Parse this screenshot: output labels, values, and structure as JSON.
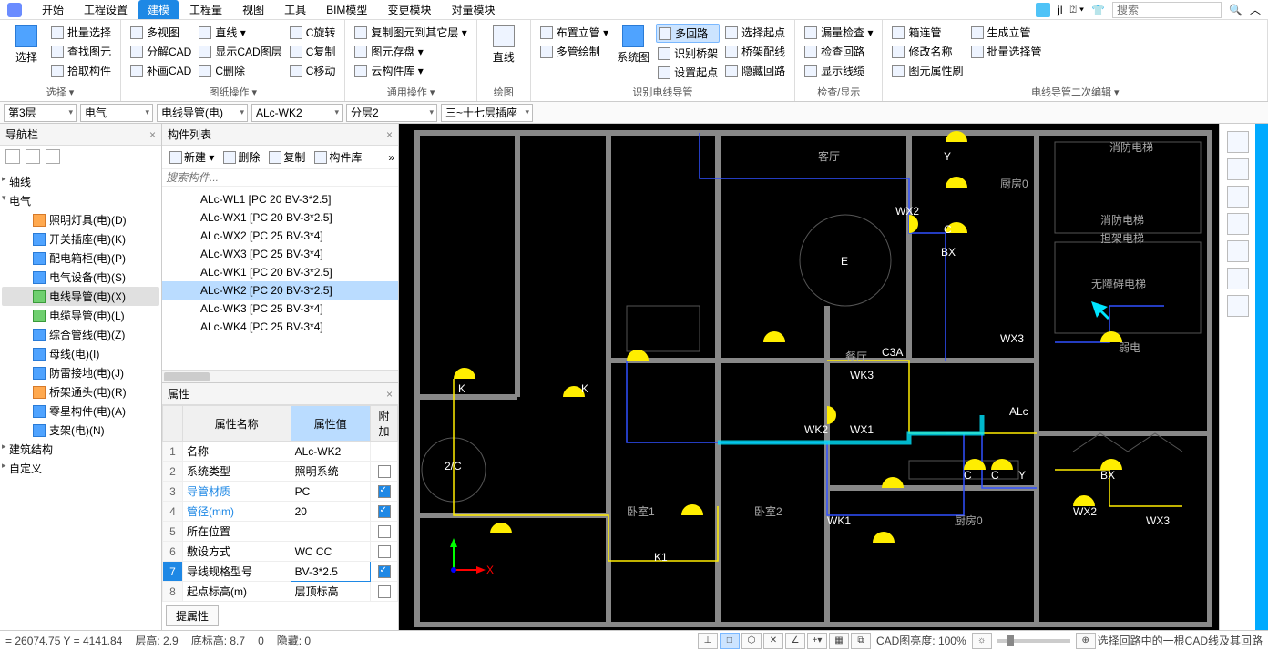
{
  "topMenu": {
    "tabs": [
      "开始",
      "工程设置",
      "建模",
      "工程量",
      "视图",
      "工具",
      "BIM模型",
      "变更模块",
      "对量模块"
    ],
    "active": 2,
    "user": "jl",
    "searchPlaceholder": "搜索"
  },
  "ribbon": {
    "select": {
      "big": "选择",
      "items": [
        "批量选择",
        "查找图元",
        "拾取构件"
      ],
      "label": "选择 ▾"
    },
    "graph": {
      "items": [
        "多视图",
        "分解CAD",
        "补画CAD"
      ],
      "items2": [
        "直线 ▾",
        "显示CAD图层",
        "C删除"
      ],
      "items3": [
        "C旋转",
        "C复制",
        "C移动"
      ],
      "label": "图纸操作 ▾"
    },
    "copy": {
      "items": [
        "复制图元到其它层 ▾",
        "图元存盘 ▾",
        "云构件库 ▾"
      ],
      "label": "通用操作 ▾"
    },
    "line": {
      "big": "直线",
      "label": "绘图"
    },
    "layout": {
      "items": [
        "布置立管 ▾",
        "多管绘制"
      ],
      "big": "系统图",
      "items2": [
        "多回路",
        "识别桥架",
        "设置起点"
      ],
      "items3": [
        "选择起点",
        "桥架配线",
        "隐藏回路"
      ],
      "label": "识别电线导管"
    },
    "check": {
      "items": [
        "漏量检查 ▾",
        "检查回路",
        "显示线缆"
      ],
      "label": "检查/显示"
    },
    "edit": {
      "items": [
        "箱连管",
        "修改名称",
        "图元属性刷"
      ],
      "items2": [
        "生成立管",
        "批量选择管"
      ],
      "label": "电线导管二次编辑 ▾"
    }
  },
  "combos": [
    "第3层",
    "电气",
    "电线导管(电)",
    "ALc-WK2",
    "分层2",
    "三~十七层插座"
  ],
  "nav": {
    "title": "导航栏",
    "roots": [
      "轴线",
      "电气",
      "建筑结构",
      "自定义"
    ],
    "electrical": [
      {
        "label": "照明灯具(电)(D)",
        "ico": "orange"
      },
      {
        "label": "开关插座(电)(K)",
        "ico": "blue"
      },
      {
        "label": "配电箱柜(电)(P)",
        "ico": "blue"
      },
      {
        "label": "电气设备(电)(S)",
        "ico": "blue"
      },
      {
        "label": "电线导管(电)(X)",
        "ico": "green",
        "sel": true
      },
      {
        "label": "电缆导管(电)(L)",
        "ico": "green"
      },
      {
        "label": "综合管线(电)(Z)",
        "ico": "blue"
      },
      {
        "label": "母线(电)(I)",
        "ico": "blue"
      },
      {
        "label": "防雷接地(电)(J)",
        "ico": "blue"
      },
      {
        "label": "桥架通头(电)(R)",
        "ico": "orange"
      },
      {
        "label": "零星构件(电)(A)",
        "ico": "blue"
      },
      {
        "label": "支架(电)(N)",
        "ico": "blue"
      }
    ]
  },
  "compList": {
    "title": "构件列表",
    "tools": [
      "新建 ▾",
      "删除",
      "复制",
      "构件库"
    ],
    "searchPlaceholder": "搜索构件...",
    "items": [
      "ALc-WL1 [PC 20 BV-3*2.5]",
      "ALc-WX1 [PC 20 BV-3*2.5]",
      "ALc-WX2 [PC 25 BV-3*4]",
      "ALc-WX3 [PC 25 BV-3*4]",
      "ALc-WK1 [PC 20 BV-3*2.5]",
      "ALc-WK2 [PC 20 BV-3*2.5]",
      "ALc-WK3 [PC 25 BV-3*4]",
      "ALc-WK4 [PC 25 BV-3*4]"
    ],
    "selected": 5
  },
  "props": {
    "title": "属性",
    "headers": [
      "属性名称",
      "属性值",
      "附加"
    ],
    "rows": [
      {
        "i": "1",
        "n": "名称",
        "v": "ALc-WK2",
        "chk": null
      },
      {
        "i": "2",
        "n": "系统类型",
        "v": "照明系统",
        "chk": false
      },
      {
        "i": "3",
        "n": "导管材质",
        "v": "PC",
        "chk": true,
        "link": true
      },
      {
        "i": "4",
        "n": "管径(mm)",
        "v": "20",
        "chk": true,
        "link": true
      },
      {
        "i": "5",
        "n": "所在位置",
        "v": "",
        "chk": false
      },
      {
        "i": "6",
        "n": "敷设方式",
        "v": "WC CC",
        "chk": false
      },
      {
        "i": "7",
        "n": "导线规格型号",
        "v": "BV-3*2.5",
        "chk": true,
        "sel": true
      },
      {
        "i": "8",
        "n": "起点标高(m)",
        "v": "层顶标高",
        "chk": false
      }
    ],
    "button": "提属性"
  },
  "status": {
    "coord": "= 26074.75 Y = 4141.84",
    "floor": "层高:  2.9",
    "bottom": "底标高:  8.7",
    "zero": "0",
    "hide": "隐藏: 0",
    "cad": "CAD图亮度:  100%",
    "hint": "选择回路中的一根CAD线及其回路"
  },
  "cad": {
    "labels": [
      "客厅",
      "厨房0",
      "消防电梯",
      "消防电梯",
      "担架电梯",
      "无障碍电梯",
      "弱电",
      "餐厅",
      "卧室1",
      "卧室2",
      "厨房0"
    ],
    "tags": [
      "WX2",
      "WX3",
      "ALc",
      "WK2",
      "WX1",
      "WK3",
      "C3A",
      "E",
      "2/C",
      "WK1",
      "K1",
      "WX2",
      "WX3",
      "BX",
      "C",
      "C",
      "Y",
      "Y",
      "C",
      "K",
      "K",
      "BX"
    ]
  }
}
